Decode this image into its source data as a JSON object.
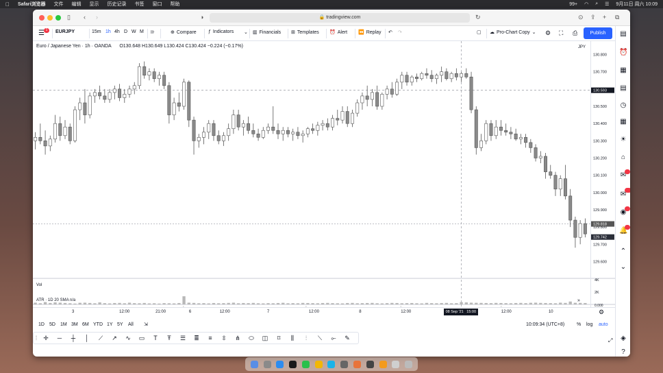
{
  "menubar": {
    "app": "Safari浏览器",
    "items": [
      "文件",
      "编辑",
      "显示",
      "历史记录",
      "书签",
      "窗口",
      "帮助"
    ],
    "datetime": "9月11日 周六  10:09",
    "badge": "99+"
  },
  "browser": {
    "url": "tradingview.com"
  },
  "toolbar": {
    "symbol": "EURJPY",
    "intervals": [
      "15m",
      "1h",
      "4h",
      "D",
      "W",
      "M"
    ],
    "compare": "Compare",
    "indicators": "Indicators",
    "financials": "Financials",
    "templates": "Templates",
    "alert": "Alert",
    "replay": "Replay",
    "layout": "Pro-Chart Copy",
    "publish": "Publish",
    "notif_count": "1"
  },
  "legend": {
    "title": "Euro / Japanese Yen · 1h · OANDA",
    "ohlc": "O130.648  H130.649  L130.424  C130.424  −0.224 (−0.17%)"
  },
  "price_axis": {
    "currency": "JPY",
    "ticks": [
      "130.800",
      "130.700",
      "130.600",
      "130.500",
      "130.400",
      "130.300",
      "130.200",
      "130.100",
      "130.000",
      "129.900",
      "129.800",
      "129.700",
      "129.600"
    ],
    "crosshair_price": "130.593",
    "label_1": "129.818",
    "label_2": "129.742"
  },
  "volume": {
    "label": "Vol",
    "ticks": [
      "4K",
      "2K"
    ]
  },
  "atr": {
    "label": "ATR · 1D 20 SMA  n/a",
    "value": "0.000"
  },
  "time_axis": {
    "ticks": [
      "3",
      "12:00",
      "21:00",
      "6",
      "12:00",
      "7",
      "12:00",
      "8",
      "12:00",
      "9",
      "12:00",
      "10"
    ],
    "crosshair_time": "08 Sep '21   15:00"
  },
  "ranges": [
    "1D",
    "5D",
    "1M",
    "3M",
    "6M",
    "YTD",
    "1Y",
    "5Y",
    "All"
  ],
  "status": {
    "clock": "10:09:34 (UTC+8)",
    "percent": "%",
    "log": "log",
    "auto": "auto"
  },
  "chart_data": {
    "type": "candlestick",
    "symbol": "EURJPY",
    "ylim": [
      129.55,
      130.83
    ],
    "candles_ohlc": [
      [
        130.3,
        130.35,
        130.25,
        130.32
      ],
      [
        130.32,
        130.4,
        130.28,
        130.3
      ],
      [
        130.3,
        130.36,
        130.22,
        130.27
      ],
      [
        130.27,
        130.33,
        130.24,
        130.31
      ],
      [
        130.31,
        130.45,
        130.29,
        130.4
      ],
      [
        130.4,
        130.44,
        130.3,
        130.33
      ],
      [
        130.33,
        130.42,
        130.31,
        130.38
      ],
      [
        130.38,
        130.4,
        130.28,
        130.3
      ],
      [
        130.3,
        130.5,
        130.29,
        130.48
      ],
      [
        130.48,
        130.55,
        130.42,
        130.52
      ],
      [
        130.52,
        130.6,
        130.4,
        130.45
      ],
      [
        130.45,
        130.58,
        130.43,
        130.56
      ],
      [
        130.56,
        130.6,
        130.52,
        130.58
      ],
      [
        130.58,
        130.62,
        130.54,
        130.56
      ],
      [
        130.56,
        130.6,
        130.52,
        130.54
      ],
      [
        130.54,
        130.6,
        130.52,
        130.58
      ],
      [
        130.58,
        130.62,
        130.54,
        130.6
      ],
      [
        130.6,
        130.63,
        130.53,
        130.55
      ],
      [
        130.55,
        130.6,
        130.52,
        130.57
      ],
      [
        130.57,
        130.62,
        130.55,
        130.6
      ],
      [
        130.6,
        130.64,
        130.57,
        130.62
      ],
      [
        130.62,
        130.75,
        130.6,
        130.73
      ],
      [
        130.73,
        130.76,
        130.66,
        130.68
      ],
      [
        130.68,
        130.72,
        130.65,
        130.7
      ],
      [
        130.7,
        130.72,
        130.64,
        130.66
      ],
      [
        130.66,
        130.7,
        130.62,
        130.68
      ],
      [
        130.68,
        130.7,
        130.6,
        130.62
      ],
      [
        130.62,
        130.64,
        130.4,
        130.45
      ],
      [
        130.45,
        130.55,
        130.42,
        130.52
      ],
      [
        130.52,
        130.58,
        130.47,
        130.5
      ],
      [
        130.5,
        130.66,
        130.48,
        130.64
      ],
      [
        130.64,
        130.65,
        130.38,
        130.42
      ],
      [
        130.42,
        130.44,
        130.22,
        130.3
      ],
      [
        130.3,
        130.34,
        130.26,
        130.32
      ],
      [
        130.32,
        130.38,
        130.28,
        130.35
      ],
      [
        130.35,
        130.42,
        130.31,
        130.4
      ],
      [
        130.4,
        130.42,
        130.3,
        130.33
      ],
      [
        130.33,
        130.36,
        130.28,
        130.3
      ],
      [
        130.3,
        130.35,
        130.27,
        130.33
      ],
      [
        130.33,
        130.4,
        130.3,
        130.37
      ],
      [
        130.37,
        130.48,
        130.34,
        130.45
      ],
      [
        130.45,
        130.48,
        130.36,
        130.38
      ],
      [
        130.38,
        130.42,
        130.33,
        130.4
      ],
      [
        130.4,
        130.44,
        130.34,
        130.36
      ],
      [
        130.36,
        130.4,
        130.32,
        130.34
      ],
      [
        130.34,
        130.37,
        130.3,
        130.32
      ],
      [
        130.32,
        130.38,
        130.31,
        130.36
      ],
      [
        130.36,
        130.4,
        130.34,
        130.38
      ],
      [
        130.38,
        130.5,
        130.34,
        130.36
      ],
      [
        130.36,
        130.4,
        130.31,
        130.34
      ],
      [
        130.34,
        130.38,
        130.3,
        130.36
      ],
      [
        130.36,
        130.38,
        130.32,
        130.34
      ],
      [
        130.34,
        130.37,
        130.3,
        130.35
      ],
      [
        130.35,
        130.38,
        130.31,
        130.33
      ],
      [
        130.33,
        130.36,
        130.29,
        130.34
      ],
      [
        130.34,
        130.38,
        130.32,
        130.37
      ],
      [
        130.37,
        130.4,
        130.34,
        130.36
      ],
      [
        130.36,
        130.41,
        130.33,
        130.39
      ],
      [
        130.39,
        130.42,
        130.36,
        130.4
      ],
      [
        130.4,
        130.43,
        130.36,
        130.38
      ],
      [
        130.38,
        130.45,
        130.36,
        130.43
      ],
      [
        130.43,
        130.48,
        130.39,
        130.42
      ],
      [
        130.42,
        130.5,
        130.4,
        130.47
      ],
      [
        130.47,
        130.5,
        130.38,
        130.4
      ],
      [
        130.4,
        130.48,
        130.38,
        130.46
      ],
      [
        130.46,
        130.54,
        130.44,
        130.52
      ],
      [
        130.52,
        130.58,
        130.48,
        130.56
      ],
      [
        130.56,
        130.62,
        130.5,
        130.54
      ],
      [
        130.54,
        130.6,
        130.5,
        130.58
      ],
      [
        130.58,
        130.62,
        130.48,
        130.5
      ],
      [
        130.5,
        130.58,
        130.48,
        130.57
      ],
      [
        130.57,
        130.62,
        130.54,
        130.6
      ],
      [
        130.6,
        130.64,
        130.55,
        130.57
      ],
      [
        130.57,
        130.66,
        130.56,
        130.64
      ],
      [
        130.64,
        130.7,
        130.6,
        130.68
      ],
      [
        130.68,
        130.7,
        130.62,
        130.64
      ],
      [
        130.64,
        130.68,
        130.62,
        130.67
      ],
      [
        130.67,
        130.69,
        130.64,
        130.66
      ],
      [
        130.66,
        130.7,
        130.65,
        130.69
      ],
      [
        130.69,
        130.72,
        130.66,
        130.68
      ],
      [
        130.68,
        130.71,
        130.64,
        130.66
      ],
      [
        130.66,
        130.69,
        130.63,
        130.68
      ],
      [
        130.68,
        130.73,
        130.64,
        130.7
      ],
      [
        130.7,
        130.72,
        130.65,
        130.66
      ],
      [
        130.66,
        130.7,
        130.64,
        130.69
      ],
      [
        130.69,
        130.72,
        130.65,
        130.67
      ],
      [
        130.67,
        130.7,
        130.64,
        130.69
      ],
      [
        130.69,
        130.72,
        130.66,
        130.67
      ],
      [
        130.67,
        130.7,
        130.46,
        130.48
      ],
      [
        130.48,
        130.5,
        130.22,
        130.26
      ],
      [
        130.26,
        130.34,
        130.24,
        130.3
      ],
      [
        130.3,
        130.42,
        130.28,
        130.4
      ],
      [
        130.4,
        130.42,
        130.3,
        130.33
      ],
      [
        130.33,
        130.42,
        130.31,
        130.38
      ],
      [
        130.38,
        130.42,
        130.33,
        130.36
      ],
      [
        130.36,
        130.4,
        130.33,
        130.35
      ],
      [
        130.35,
        130.38,
        130.31,
        130.34
      ],
      [
        130.34,
        130.37,
        130.3,
        130.31
      ],
      [
        130.31,
        130.34,
        130.28,
        130.32
      ],
      [
        130.32,
        130.34,
        130.26,
        130.29
      ],
      [
        130.29,
        130.31,
        130.23,
        130.26
      ],
      [
        130.26,
        130.28,
        130.18,
        130.2
      ],
      [
        130.2,
        130.24,
        130.17,
        130.21
      ],
      [
        130.21,
        130.23,
        130.08,
        130.12
      ],
      [
        130.12,
        130.16,
        130.08,
        130.1
      ],
      [
        130.1,
        130.12,
        129.98,
        130.02
      ],
      [
        130.02,
        130.1,
        129.98,
        130.08
      ],
      [
        130.08,
        130.16,
        129.96,
        129.98
      ],
      [
        129.98,
        130.02,
        129.8,
        129.84
      ],
      [
        129.84,
        129.86,
        129.68,
        129.74
      ],
      [
        129.74,
        129.84,
        129.7,
        129.82
      ],
      [
        129.82,
        129.85,
        129.74,
        129.76
      ]
    ],
    "volume": [
      300,
      200,
      400,
      250,
      350,
      300,
      250,
      200,
      150,
      280,
      300,
      250,
      200,
      350,
      220,
      180,
      240,
      260,
      200,
      300,
      220,
      200,
      250,
      180,
      200,
      150,
      220,
      200,
      180,
      240,
      1400,
      300,
      260,
      200,
      220,
      180,
      240,
      200,
      220,
      260,
      300,
      200,
      240,
      220,
      260,
      200,
      180,
      220,
      200,
      240,
      280,
      200,
      220,
      200,
      260,
      240,
      220,
      200,
      240,
      260,
      220,
      200,
      180,
      240,
      260,
      200,
      220,
      240,
      260,
      200,
      180,
      220,
      260,
      240,
      200,
      220,
      240,
      200,
      180,
      260,
      220,
      200,
      240,
      260,
      200,
      220,
      400,
      350,
      300,
      280,
      260,
      240,
      220,
      260,
      240,
      220,
      200,
      240,
      260,
      220,
      280,
      300,
      260,
      240,
      220,
      200,
      300,
      260,
      500,
      280,
      260,
      240
    ]
  }
}
